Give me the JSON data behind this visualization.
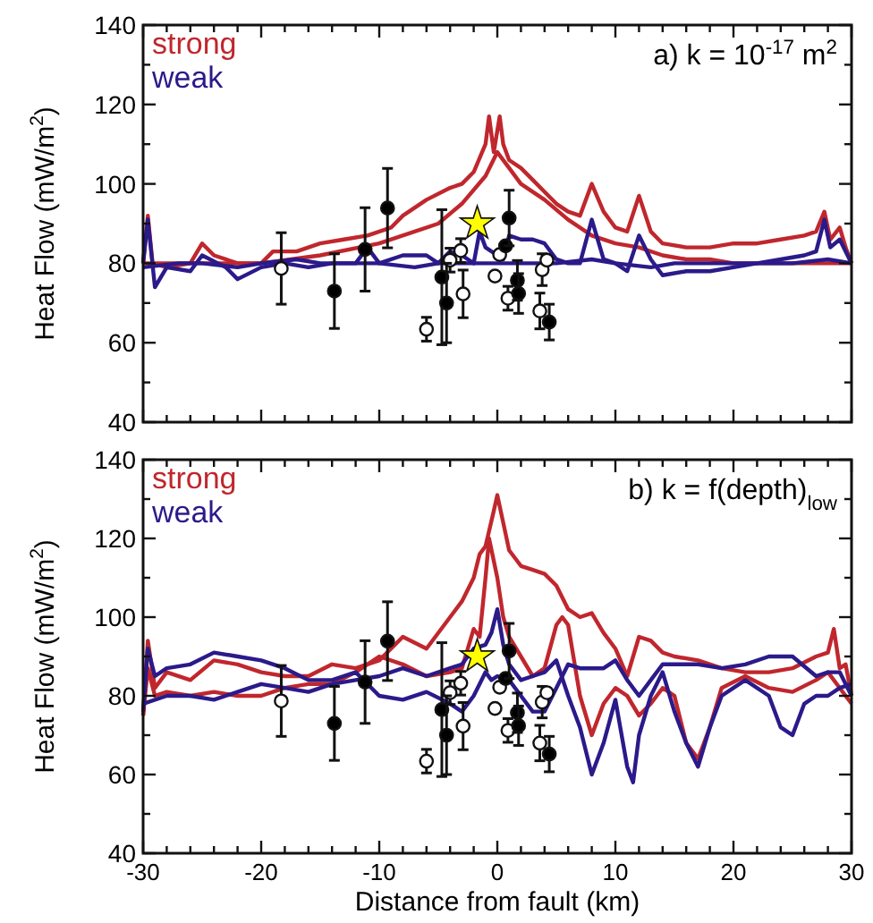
{
  "chart_data": [
    {
      "type": "line",
      "ylabel": "Heat Flow (mW/m$^{2}$)",
      "annotations": [
        "a) k = 10$^{-17}$ m$^{2}$"
      ],
      "xlim": [
        -30,
        30
      ],
      "ylim": [
        40,
        140
      ],
      "xticks": [
        -30,
        {
          "value": -28,
          "label": null
        },
        {
          "value": -26,
          "label": null
        },
        {
          "value": -24,
          "label": null
        },
        {
          "value": -22,
          "label": null
        },
        -20,
        {
          "value": -18,
          "label": null
        },
        {
          "value": -16,
          "label": null
        },
        {
          "value": -14,
          "label": null
        },
        {
          "value": -12,
          "label": null
        },
        -10,
        {
          "value": -8,
          "label": null
        },
        {
          "value": -6,
          "label": null
        },
        {
          "value": -4,
          "label": null
        },
        {
          "value": -2,
          "label": null
        },
        0,
        {
          "value": 2,
          "label": null
        },
        {
          "value": 4,
          "label": null
        },
        {
          "value": 6,
          "label": null
        },
        {
          "value": 8,
          "label": null
        },
        10,
        {
          "value": 12,
          "label": null
        },
        {
          "value": 14,
          "label": null
        },
        {
          "value": 16,
          "label": null
        },
        {
          "value": 18,
          "label": null
        },
        20,
        {
          "value": 22,
          "label": null
        },
        {
          "value": 24,
          "label": null
        },
        {
          "value": 26,
          "label": null
        },
        {
          "value": 28,
          "label": null
        },
        30
      ],
      "yticks": [
        40,
        {
          "value": 50,
          "label": null
        },
        60,
        {
          "value": 70,
          "label": null
        },
        80,
        {
          "value": 90,
          "label": null
        },
        100,
        {
          "value": 110,
          "label": null
        },
        120,
        {
          "value": 130,
          "label": null
        },
        140
      ],
      "tick_labels": "y",
      "legend": "top left",
      "grid": false,
      "line_style": "solid",
      "series": [
        {
          "name": "strong",
          "color": "#c0272d",
          "x": [
            -30,
            -29.6,
            -29.2,
            -28,
            -26,
            -25,
            -24,
            -22,
            -20,
            -19,
            -17,
            -15,
            -13,
            -11,
            -9,
            -8,
            -6,
            -4,
            -3,
            -2,
            -1,
            -0.7,
            -0.3,
            0.2,
            0.5,
            1,
            2,
            3,
            4,
            5,
            6,
            7,
            8,
            9,
            10,
            11,
            12,
            13,
            14,
            16,
            18,
            20,
            22,
            24,
            26,
            27,
            27.7,
            28.2,
            29,
            29.5,
            30
          ],
          "values": [
            80,
            92,
            80,
            79,
            80,
            85,
            82,
            80,
            80,
            83,
            83,
            85,
            86,
            87,
            89,
            92,
            96,
            99,
            100,
            103,
            110,
            117,
            108,
            117,
            110,
            106,
            104,
            101,
            98,
            95,
            93,
            92,
            100,
            93,
            89,
            88,
            97,
            88,
            85,
            84,
            84,
            85,
            85,
            86,
            87,
            88,
            93,
            86,
            89,
            84,
            80
          ]
        },
        {
          "color": "#c0272d",
          "x": [
            -30,
            -25,
            -20,
            -15,
            -10,
            -5,
            -3,
            -1,
            0,
            1,
            2,
            4,
            6,
            8,
            10,
            12,
            14,
            16,
            18,
            20,
            22,
            24,
            26,
            28,
            30
          ],
          "values": [
            80,
            80,
            80,
            82,
            85,
            90,
            95,
            102,
            108,
            104,
            100,
            96,
            91,
            87,
            85,
            84,
            82,
            81,
            81,
            80,
            80,
            80,
            80,
            80,
            80
          ]
        },
        {
          "name": "weak",
          "color": "#2b1a8a",
          "x": [
            -30,
            -29.6,
            -29,
            -28,
            -26,
            -25,
            -23,
            -22,
            -20,
            -18,
            -16,
            -14,
            -12,
            -11,
            -10,
            -8,
            -6,
            -5,
            -4,
            -3,
            -2,
            -1.5,
            -1,
            0,
            0.5,
            1,
            2,
            3,
            4,
            5,
            6,
            7,
            8,
            9,
            10,
            11,
            12,
            13,
            14,
            16,
            18,
            20,
            22,
            24,
            26,
            27,
            27.7,
            28.2,
            29,
            30
          ],
          "values": [
            80,
            91,
            74,
            79,
            78,
            82,
            79,
            76,
            79,
            80,
            79,
            80,
            80,
            84,
            80,
            82,
            82,
            80,
            83,
            82,
            80,
            88,
            84,
            82,
            81,
            87,
            86,
            86,
            85,
            81,
            80,
            80,
            91,
            81,
            80,
            78,
            87,
            81,
            77,
            78,
            78,
            79,
            80,
            81,
            82,
            83,
            91,
            84,
            86,
            80
          ]
        },
        {
          "color": "#2b1a8a",
          "x": [
            -30,
            -27,
            -25,
            -22,
            -20,
            -17,
            -15,
            -12,
            -10,
            -7,
            -5,
            -3,
            0,
            3,
            5,
            8,
            10,
            13,
            15,
            18,
            20,
            23,
            25,
            28,
            30
          ],
          "values": [
            79,
            80,
            80,
            79,
            80,
            81,
            80,
            80,
            80,
            79,
            80,
            80,
            80,
            80,
            80,
            81,
            80,
            79,
            80,
            80,
            80,
            80,
            80,
            81,
            80
          ]
        },
        {
          "type": "scatter",
          "marker": "circle",
          "color": "#ffffff",
          "x": [
            -18.3,
            -6,
            -4,
            -3.1,
            -2.9,
            -0.2,
            0.2,
            0.9,
            3.6,
            3.8,
            4.2
          ],
          "values": [
            78.7,
            63.4,
            80.8,
            83.2,
            72.3,
            76.8,
            82.2,
            71.2,
            68,
            78.4,
            80.8
          ],
          "errors": [
            9,
            3,
            3,
            3,
            6,
            null,
            null,
            3,
            4.5,
            4,
            null
          ]
        },
        {
          "type": "scatter",
          "marker": "circle",
          "color": "#000000",
          "x": [
            -13.8,
            -11.2,
            -9.3,
            -4.7,
            -4.3,
            0.7,
            1.0,
            1.7,
            1.8,
            4.4
          ],
          "values": [
            73,
            83.5,
            93.9,
            76.5,
            70,
            84.4,
            91.4,
            75.7,
            72.4,
            65.2
          ],
          "errors": [
            9.4,
            10.5,
            10,
            17,
            10,
            null,
            7,
            5,
            5,
            4.5
          ]
        },
        {
          "type": "scatter",
          "marker": "star",
          "color": "#ffff00",
          "x": [
            -1.7
          ],
          "values": [
            90
          ]
        }
      ]
    },
    {
      "type": "line",
      "xlabel": "Distance from fault (km)",
      "ylabel": "Heat Flow (mW/m$^{2}$)",
      "annotations": [
        "b) k = f(depth)$_{low}$"
      ],
      "xlim": [
        -30,
        30
      ],
      "ylim": [
        40,
        140
      ],
      "xticks": [
        -30,
        {
          "value": -28,
          "label": null
        },
        {
          "value": -26,
          "label": null
        },
        {
          "value": -24,
          "label": null
        },
        {
          "value": -22,
          "label": null
        },
        -20,
        {
          "value": -18,
          "label": null
        },
        {
          "value": -16,
          "label": null
        },
        {
          "value": -14,
          "label": null
        },
        {
          "value": -12,
          "label": null
        },
        -10,
        {
          "value": -8,
          "label": null
        },
        {
          "value": -6,
          "label": null
        },
        {
          "value": -4,
          "label": null
        },
        {
          "value": -2,
          "label": null
        },
        0,
        {
          "value": 2,
          "label": null
        },
        {
          "value": 4,
          "label": null
        },
        {
          "value": 6,
          "label": null
        },
        {
          "value": 8,
          "label": null
        },
        10,
        {
          "value": 12,
          "label": null
        },
        {
          "value": 14,
          "label": null
        },
        {
          "value": 16,
          "label": null
        },
        {
          "value": 18,
          "label": null
        },
        20,
        {
          "value": 22,
          "label": null
        },
        {
          "value": 24,
          "label": null
        },
        {
          "value": 26,
          "label": null
        },
        {
          "value": 28,
          "label": null
        },
        30
      ],
      "yticks": [
        40,
        {
          "value": 50,
          "label": null
        },
        60,
        {
          "value": 70,
          "label": null
        },
        80,
        {
          "value": 90,
          "label": null
        },
        100,
        {
          "value": 110,
          "label": null
        },
        120,
        {
          "value": 130,
          "label": null
        },
        140
      ],
      "legend": "top left",
      "grid": false,
      "line_style": "solid",
      "series": [
        {
          "name": "strong",
          "color": "#c0272d",
          "x": [
            -30,
            -29.6,
            -29,
            -28,
            -26,
            -24,
            -22,
            -20,
            -18,
            -16,
            -14,
            -12,
            -10,
            -8,
            -6,
            -4,
            -3,
            -2,
            -1.5,
            -1,
            -0.3,
            0,
            0.5,
            1,
            2,
            3,
            4,
            5,
            6,
            7,
            8,
            9,
            10,
            11,
            12,
            13,
            14,
            15,
            17,
            19,
            21,
            23,
            25,
            27,
            28,
            28.5,
            29,
            29.5,
            30
          ],
          "values": [
            75,
            94,
            82,
            86,
            84,
            89,
            88,
            86,
            85,
            85,
            88,
            87,
            89,
            95,
            92,
            100,
            104,
            110,
            116,
            118,
            127,
            131,
            124,
            117,
            113,
            112,
            111,
            108,
            102,
            100,
            101,
            96,
            92,
            85,
            95,
            94,
            91,
            90,
            89,
            87,
            86,
            86,
            87,
            90,
            91,
            97,
            87,
            88,
            80
          ]
        },
        {
          "color": "#c0272d",
          "x": [
            -30,
            -29.6,
            -29,
            -28,
            -26,
            -24,
            -22,
            -20,
            -18,
            -16,
            -14,
            -12,
            -10,
            -8,
            -6,
            -4,
            -3,
            -2,
            -1.5,
            -1,
            -0.7,
            0,
            0.5,
            1,
            2,
            3,
            4,
            5,
            5.5,
            6,
            7,
            8,
            9,
            10,
            11,
            12,
            13,
            14,
            15,
            16,
            17,
            18,
            19,
            21,
            23,
            25,
            27,
            28,
            29,
            30
          ],
          "values": [
            75,
            87,
            80,
            81,
            80,
            81,
            80,
            80,
            82,
            83,
            83,
            86,
            90,
            88,
            85,
            86,
            87,
            97,
            95,
            110,
            120,
            110,
            100,
            95,
            90,
            85,
            87,
            98,
            100,
            98,
            80,
            70,
            78,
            82,
            80,
            75,
            78,
            82,
            80,
            68,
            64,
            72,
            82,
            85,
            82,
            81,
            84,
            86,
            82,
            78
          ]
        },
        {
          "name": "weak",
          "color": "#2b1a8a",
          "x": [
            -30,
            -29.6,
            -29,
            -28,
            -26,
            -24,
            -22,
            -20,
            -18,
            -16,
            -14,
            -12,
            -10,
            -8,
            -6,
            -4,
            -3,
            -2,
            -1,
            -0.5,
            0,
            1,
            2,
            3,
            4,
            5,
            6,
            7,
            8,
            9,
            10,
            11,
            12,
            13,
            14,
            15,
            17,
            19,
            21,
            23,
            25,
            27,
            28,
            29,
            30
          ],
          "values": [
            76,
            92,
            85,
            87,
            88,
            91,
            90,
            89,
            87,
            84,
            84,
            86,
            80,
            79,
            81,
            78,
            76,
            80,
            86,
            84,
            85,
            84,
            80,
            76,
            76,
            82,
            88,
            87,
            87,
            87,
            89,
            84,
            80,
            84,
            88,
            88,
            88,
            87,
            88,
            90,
            90,
            85,
            86,
            86,
            80
          ]
        },
        {
          "color": "#2b1a8a",
          "x": [
            -30,
            -28,
            -26,
            -24,
            -22,
            -20,
            -18,
            -16,
            -14,
            -12,
            -10,
            -8,
            -6,
            -4,
            -3,
            -2,
            -1,
            -0.5,
            0,
            0.5,
            1,
            2,
            3,
            4,
            5,
            6,
            7,
            8,
            9,
            10,
            11,
            11.5,
            12,
            13,
            14,
            15,
            16,
            17,
            18,
            19,
            20,
            21,
            23,
            24,
            25,
            26,
            27,
            28,
            29,
            30
          ],
          "values": [
            78,
            80,
            80,
            79,
            81,
            83,
            82,
            81,
            83,
            84,
            85,
            87,
            85,
            87,
            88,
            92,
            93,
            96,
            102,
            93,
            88,
            84,
            85,
            86,
            89,
            80,
            72,
            60,
            68,
            79,
            62,
            58,
            70,
            80,
            86,
            76,
            68,
            62,
            72,
            80,
            82,
            84,
            80,
            72,
            70,
            78,
            80,
            80,
            82,
            83
          ]
        },
        {
          "type": "scatter",
          "marker": "circle",
          "color": "#ffffff",
          "x": [
            -18.3,
            -6,
            -4,
            -3.1,
            -2.9,
            -0.2,
            0.2,
            0.9,
            3.6,
            3.8,
            4.2
          ],
          "values": [
            78.7,
            63.4,
            80.8,
            83.2,
            72.3,
            76.8,
            82.2,
            71.2,
            68,
            78.4,
            80.8
          ],
          "errors": [
            9,
            3,
            3,
            3,
            6,
            null,
            null,
            3,
            4.5,
            4,
            null
          ]
        },
        {
          "type": "scatter",
          "marker": "circle",
          "color": "#000000",
          "x": [
            -13.8,
            -11.2,
            -9.3,
            -4.7,
            -4.3,
            0.7,
            1.0,
            1.7,
            1.8,
            4.4
          ],
          "values": [
            73,
            83.5,
            93.9,
            76.5,
            70,
            84.4,
            91.4,
            75.7,
            72.4,
            65.2
          ],
          "errors": [
            9.4,
            10.5,
            10,
            17,
            10,
            null,
            7,
            5,
            5,
            4.5
          ]
        },
        {
          "type": "scatter",
          "marker": "star",
          "color": "#ffff00",
          "x": [
            -1.7
          ],
          "values": [
            90
          ]
        }
      ]
    }
  ]
}
